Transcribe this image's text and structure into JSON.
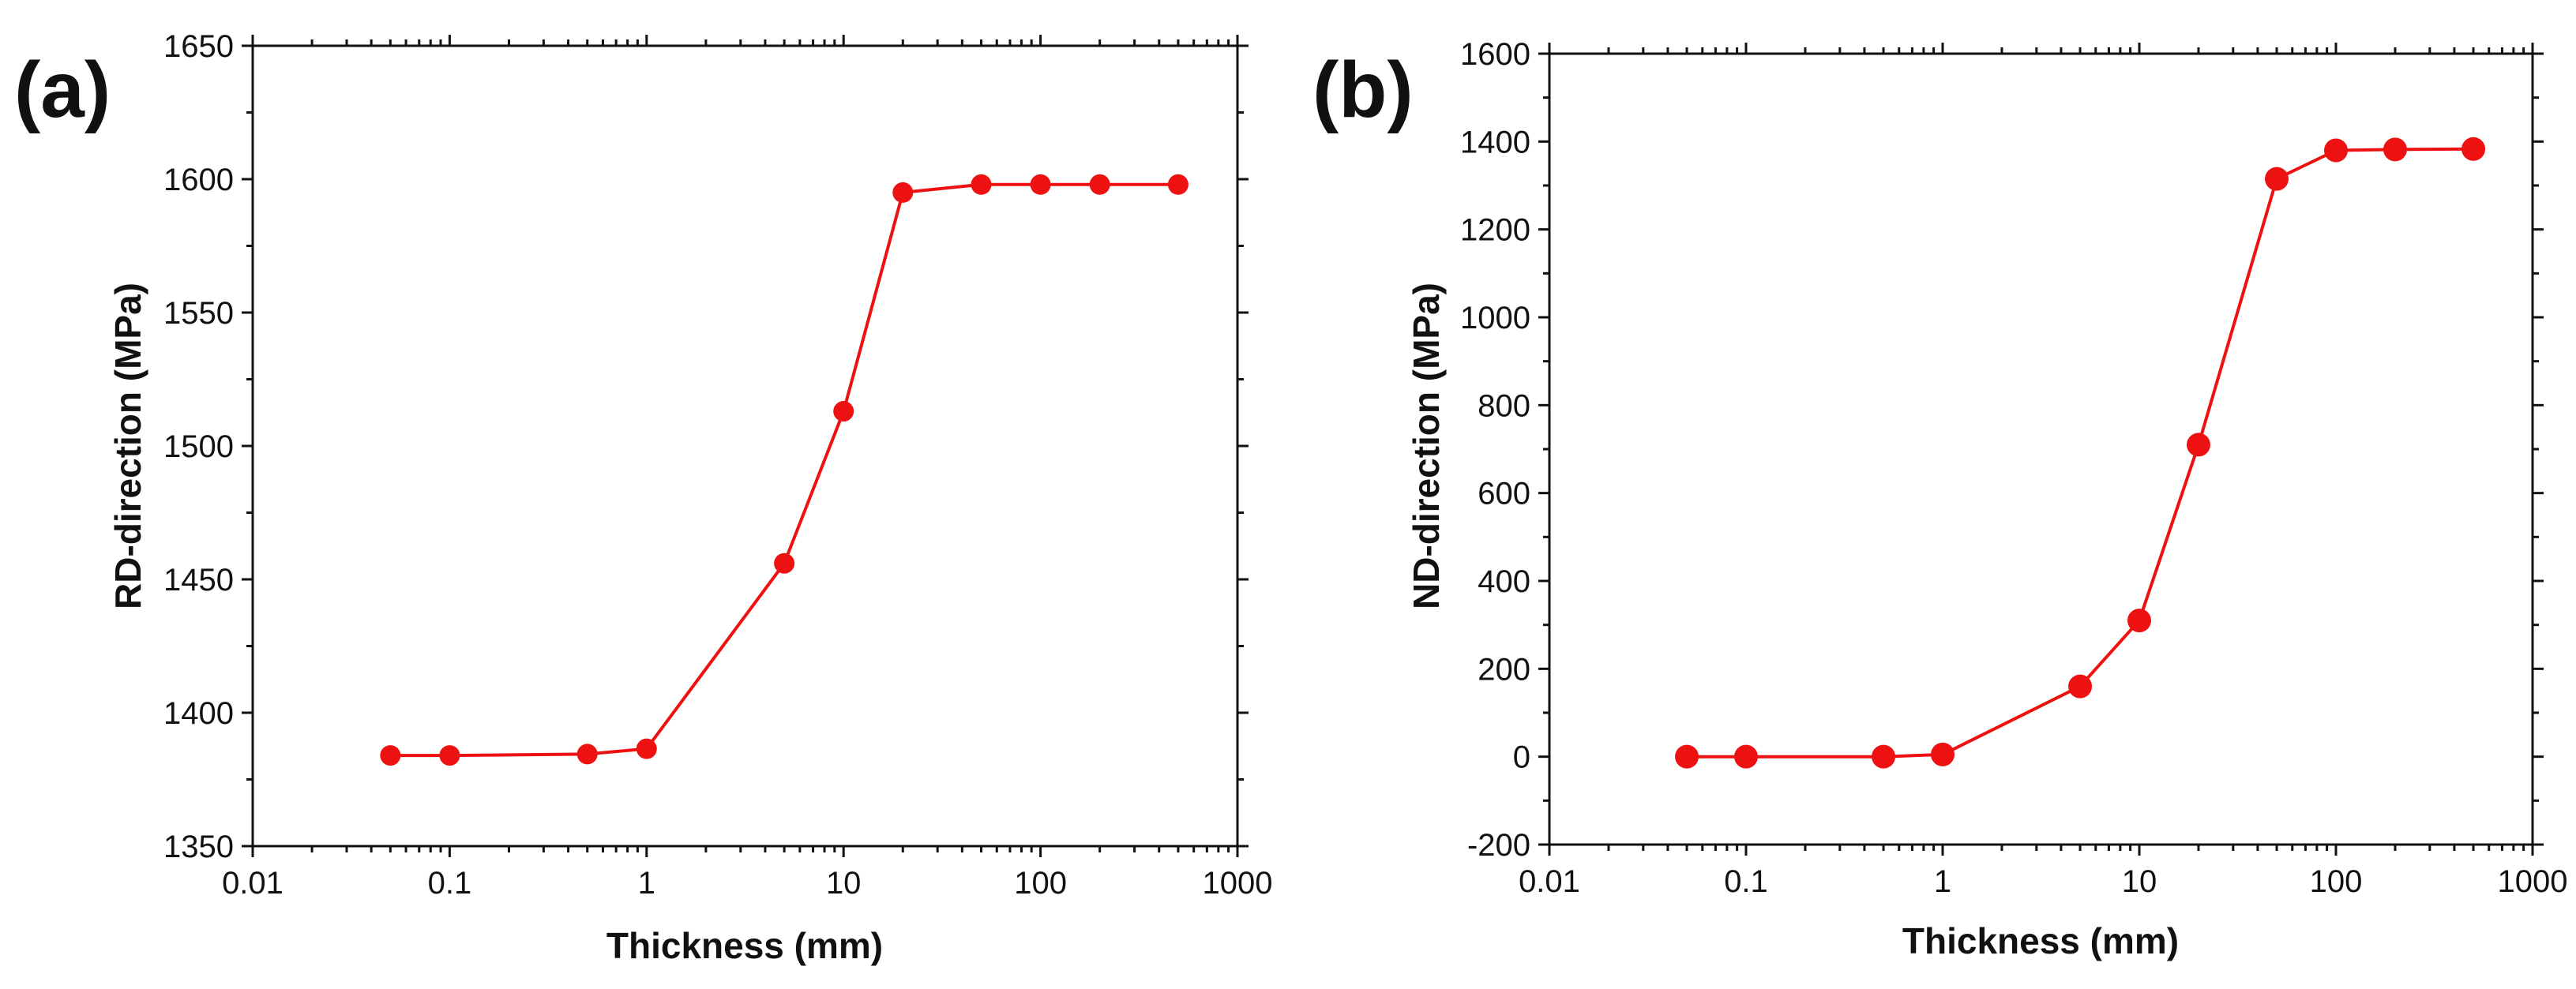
{
  "chart_data": [
    {
      "panel_label": "(a)",
      "type": "line",
      "x_scale": "log",
      "xlabel": "Thickness (mm)",
      "ylabel": "RD-direction (MPa)",
      "xlim": [
        0.01,
        1000
      ],
      "ylim": [
        1350,
        1650
      ],
      "x_ticks": [
        0.01,
        0.1,
        1,
        10,
        100,
        1000
      ],
      "x_tick_labels": [
        "0.01",
        "0.1",
        "1",
        "10",
        "100",
        "1000"
      ],
      "y_ticks": [
        1350,
        1400,
        1450,
        1500,
        1550,
        1600,
        1650
      ],
      "y_tick_labels": [
        "1350",
        "1400",
        "1450",
        "1500",
        "1550",
        "1600",
        "1650"
      ],
      "series": [
        {
          "name": "RD-direction",
          "color": "#ee1111",
          "x": [
            0.05,
            0.1,
            0.5,
            1,
            5,
            10,
            20,
            50,
            100,
            200,
            500
          ],
          "y": [
            1384,
            1384,
            1384.5,
            1386.5,
            1456,
            1513,
            1595,
            1598,
            1598,
            1598,
            1598
          ]
        }
      ]
    },
    {
      "panel_label": "(b)",
      "type": "line",
      "x_scale": "log",
      "xlabel": "Thickness (mm)",
      "ylabel": "ND-direction (MPa)",
      "xlim": [
        0.01,
        1000
      ],
      "ylim": [
        -200,
        1600
      ],
      "x_ticks": [
        0.01,
        0.1,
        1,
        10,
        100,
        1000
      ],
      "x_tick_labels": [
        "0.01",
        "0.1",
        "1",
        "10",
        "100",
        "1000"
      ],
      "y_ticks": [
        -200,
        0,
        200,
        400,
        600,
        800,
        1000,
        1200,
        1400,
        1600
      ],
      "y_tick_labels": [
        "-200",
        "0",
        "200",
        "400",
        "600",
        "800",
        "1000",
        "1200",
        "1400",
        "1600"
      ],
      "series": [
        {
          "name": "ND-direction",
          "color": "#ee1111",
          "x": [
            0.05,
            0.1,
            0.5,
            1,
            5,
            10,
            20,
            50,
            100,
            200,
            500
          ],
          "y": [
            0,
            0,
            0,
            5,
            160,
            310,
            710,
            1315,
            1380,
            1382,
            1383
          ]
        }
      ]
    }
  ]
}
